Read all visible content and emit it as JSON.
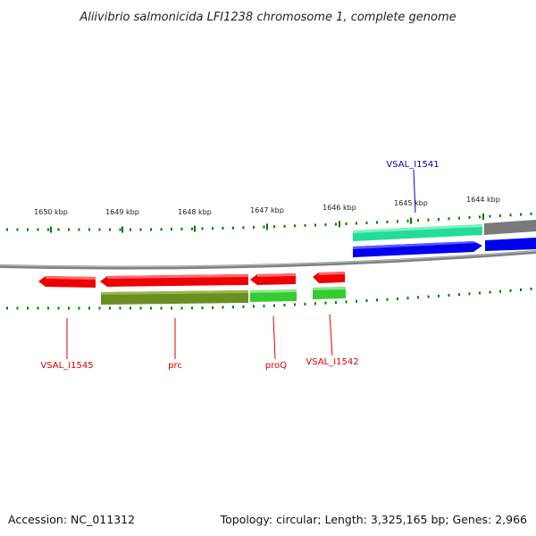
{
  "title": "Aliivibrio salmonicida LFI1238 chromosome 1, complete genome",
  "footer": {
    "accession": "Accession: NC_011312",
    "summary": "Topology: circular; Length: 3,325,165 bp; Genes: 2,966"
  },
  "ruler": {
    "ticks": [
      "1650 kbp",
      "1649 kbp",
      "1648 kbp",
      "1647 kbp",
      "1646 kbp",
      "1645 kbp",
      "1644 kbp"
    ]
  },
  "genes": {
    "vsal_i1541": {
      "label": "VSAL_I1541",
      "color": "#0000cc",
      "strand": "+"
    },
    "vsal_i1542": {
      "label": "VSAL_I1542",
      "color": "#dd0000",
      "strand": "-"
    },
    "proq": {
      "label": "proQ",
      "color": "#dd0000",
      "strand": "-"
    },
    "prc": {
      "label": "prc",
      "color": "#dd0000",
      "strand": "-"
    },
    "vsal_i1545": {
      "label": "VSAL_I1545",
      "color": "#dd0000",
      "strand": "-"
    }
  },
  "colors": {
    "backbone": "#808080",
    "tick": "#007700",
    "forward_cds": "#0000ee",
    "forward_gene": "#22dd99",
    "reverse_cds": "#ee0000",
    "reverse_gene_green": "#33cc33",
    "reverse_gene_olive": "#6b8e23",
    "other_feature": "#808080"
  }
}
